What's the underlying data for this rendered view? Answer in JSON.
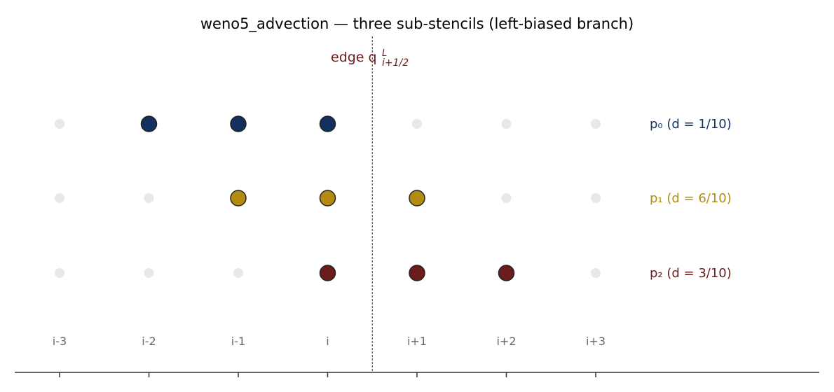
{
  "title": "weno5_advection — three sub-stencils (left-biased branch)",
  "colors": {
    "background": "#ffffff",
    "inactive_point": "#e8e8e8",
    "axis": "#333333",
    "cell_label": "#666666",
    "edge_line": "#6b1c1c",
    "point_stroke": "#222222"
  },
  "edge": {
    "label": "edge q",
    "superscript": "L",
    "subscript": "i+1/2",
    "position": "between i and i+1"
  },
  "cells": [
    "i-3",
    "i-2",
    "i-1",
    "i",
    "i+1",
    "i+2",
    "i+3"
  ],
  "stencils": [
    {
      "label": "p₀  (d = 1/10)",
      "color": "#14305e",
      "cells": [
        "i-2",
        "i-1",
        "i"
      ]
    },
    {
      "label": "p₁  (d = 6/10)",
      "color": "#b38b0f",
      "cells": [
        "i-1",
        "i",
        "i+1"
      ]
    },
    {
      "label": "p₂  (d = 3/10)",
      "color": "#6b1c1c",
      "cells": [
        "i",
        "i+1",
        "i+2"
      ]
    }
  ]
}
